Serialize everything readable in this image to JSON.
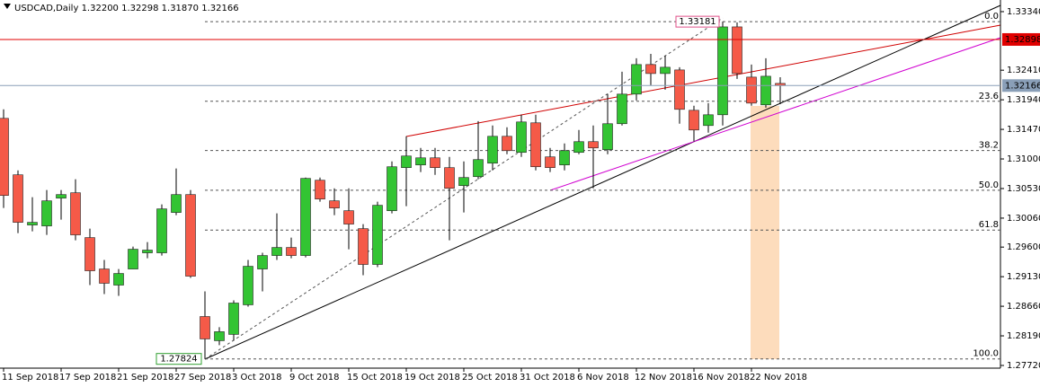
{
  "chart_data": {
    "type": "candlestick",
    "title": "USDCAD,Daily",
    "title_values": [
      "1.32200",
      "1.32298",
      "1.31870",
      "1.32166"
    ],
    "categories": [
      "11 Sep 2018",
      null,
      null,
      null,
      "17 Sep 2018",
      null,
      null,
      null,
      "21 Sep 2018",
      null,
      null,
      null,
      "27 Sep 2018",
      null,
      null,
      null,
      "3 Oct 2018",
      null,
      null,
      null,
      "9 Oct 2018",
      null,
      null,
      null,
      "15 Oct 2018",
      null,
      null,
      null,
      "19 Oct 2018",
      null,
      null,
      null,
      "25 Oct 2018",
      null,
      null,
      null,
      "31 Oct 2018",
      null,
      null,
      null,
      "6 Nov 2018",
      null,
      null,
      null,
      "12 Nov 2018",
      null,
      null,
      null,
      "16 Nov 2018",
      null,
      null,
      null,
      "22 Nov 2018",
      null,
      null
    ],
    "open": [
      1.31645,
      1.30748,
      1.29951,
      1.29936,
      1.30378,
      1.30463,
      1.29751,
      1.29252,
      1.28996,
      1.29252,
      1.29509,
      1.29509,
      1.3015,
      1.30434,
      1.28497,
      1.28113,
      1.28213,
      1.28683,
      1.29252,
      1.29466,
      1.29594,
      1.29466,
      1.30662,
      1.30335,
      1.30178,
      1.29893,
      1.29324,
      1.30178,
      1.30862,
      1.30905,
      1.31018,
      1.30862,
      1.30577,
      1.30719,
      1.30933,
      1.3136,
      1.31104,
      1.31574,
      1.31033,
      1.30905,
      1.31104,
      1.31275,
      1.31147,
      1.3156,
      1.3203,
      1.325,
      1.32357,
      1.32414,
      1.31773,
      1.31531,
      1.31702,
      1.33098,
      1.323,
      1.31859,
      1.322
    ],
    "high": [
      1.31788,
      1.30819,
      1.30392,
      1.30506,
      1.30506,
      1.30677,
      1.29893,
      1.29395,
      1.29252,
      1.29608,
      1.2968,
      1.30278,
      1.30848,
      1.30506,
      1.28896,
      1.28327,
      1.28754,
      1.29395,
      1.29509,
      1.30136,
      1.29751,
      1.30705,
      1.30705,
      1.30534,
      1.30534,
      1.29965,
      1.30321,
      1.30962,
      1.3136,
      1.31175,
      1.31175,
      1.31033,
      1.30962,
      1.31602,
      1.31531,
      1.31503,
      1.31702,
      1.31702,
      1.31175,
      1.31246,
      1.3146,
      1.31531,
      1.3203,
      1.32386,
      1.32599,
      1.3267,
      1.32642,
      1.32457,
      1.31845,
      1.31887,
      1.33181,
      1.33169,
      1.325,
      1.32599,
      1.32298
    ],
    "low": [
      1.30221,
      1.29822,
      1.29851,
      1.29794,
      1.30036,
      1.29708,
      1.28996,
      1.28854,
      1.28825,
      1.29252,
      1.29423,
      1.29466,
      1.30107,
      1.2911,
      1.27824,
      1.28042,
      1.28113,
      1.28654,
      1.28896,
      1.29395,
      1.29423,
      1.29437,
      1.30321,
      1.30107,
      1.29566,
      1.29153,
      1.29281,
      1.30136,
      1.30249,
      1.30791,
      1.30748,
      1.29708,
      1.3015,
      1.30677,
      1.30819,
      1.31076,
      1.31033,
      1.30819,
      1.30791,
      1.30819,
      1.31076,
      1.30534,
      1.31076,
      1.31531,
      1.3193,
      1.32172,
      1.32101,
      1.3156,
      1.31275,
      1.31417,
      1.31531,
      1.32272,
      1.31845,
      1.31816,
      1.3187
    ],
    "close": [
      1.3042,
      1.29993,
      1.29993,
      1.30335,
      1.30434,
      1.29794,
      1.29224,
      1.29025,
      1.29181,
      1.29566,
      1.29552,
      1.30207,
      1.30434,
      1.29138,
      1.28141,
      1.28256,
      1.28711,
      1.29295,
      1.29466,
      1.29594,
      1.29466,
      1.30691,
      1.30363,
      1.30221,
      1.29965,
      1.29324,
      1.30264,
      1.30876,
      1.31047,
      1.31018,
      1.30862,
      1.30534,
      1.30705,
      1.3099,
      1.3136,
      1.31132,
      1.31588,
      1.30876,
      1.30862,
      1.31132,
      1.31275,
      1.31175,
      1.3156,
      1.3203,
      1.325,
      1.32357,
      1.32457,
      1.31788,
      1.3146,
      1.31702,
      1.33098,
      1.32357,
      1.31887,
      1.32314,
      1.32166
    ],
    "up_color": "#33c433",
    "down_color": "#f55a48",
    "ylim": [
      1.27677,
      1.33525
    ],
    "yticks": [
      {
        "value": 1.3334,
        "label": "1.33340"
      },
      {
        "value": 1.3241,
        "label": "1.32410"
      },
      {
        "value": 1.3194,
        "label": "1.31940"
      },
      {
        "value": 1.3147,
        "label": "1.31470"
      },
      {
        "value": 1.31,
        "label": "1.31000"
      },
      {
        "value": 1.3053,
        "label": "1.30530"
      },
      {
        "value": 1.3006,
        "label": "1.30060"
      },
      {
        "value": 1.296,
        "label": "1.29600"
      },
      {
        "value": 1.2913,
        "label": "1.29130"
      },
      {
        "value": 1.2866,
        "label": "1.28660"
      },
      {
        "value": 1.2819,
        "label": "1.28190"
      },
      {
        "value": 1.2772,
        "label": "1.27720"
      }
    ],
    "price_lines": [
      {
        "value": 1.32898,
        "label": "1.32898",
        "color": "#e00000"
      },
      {
        "value": 1.32166,
        "label": "1.32166",
        "color": "#8a9fb8"
      }
    ],
    "fibonacci": {
      "high": {
        "value": 1.33181,
        "label": "1.33181"
      },
      "low": {
        "value": 1.27824,
        "label": "1.27824"
      },
      "levels": [
        {
          "value": 0,
          "label": "0.0"
        },
        23.6,
        38.2,
        {
          "value": 50,
          "label": "50.0"
        },
        61.8,
        {
          "value": 100,
          "label": "100.0"
        }
      ]
    }
  }
}
